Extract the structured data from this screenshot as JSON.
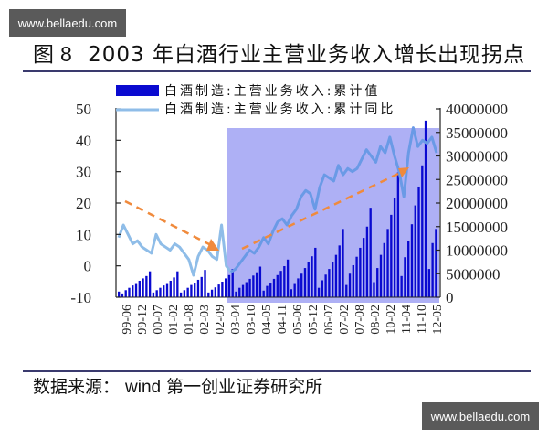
{
  "watermark": {
    "top": "www.bellaedu.com",
    "bottom": "www.bellaedu.com"
  },
  "figure": {
    "label": "图",
    "number": "8",
    "title": "2003 年白酒行业主营业务收入增长出现拐点"
  },
  "source": {
    "prefix": "数据来源：",
    "vendor": "wind",
    "org": "第一创业证券研究所"
  },
  "colors": {
    "bars": "#0a0ad0",
    "line": "#8fbde8",
    "line_highlight": "#6a9ae6",
    "shade": "#aeb0f5",
    "arrow": "#f08a3c",
    "rule": "#3a3a6e"
  },
  "chart_data": {
    "type": "bar+line",
    "title": "2003 年白酒行业主营业务收入增长出现拐点",
    "legend": [
      {
        "name": "白酒制造:主营业务收入:累计值",
        "type": "bar",
        "axis": "right"
      },
      {
        "name": "白酒制造:主营业务收入:累计同比",
        "type": "line",
        "axis": "left"
      }
    ],
    "legend_position": "top",
    "left_axis": {
      "ticks": [
        "50",
        "40",
        "30",
        "20",
        "10",
        "0",
        "-10"
      ],
      "ylim": [
        -10,
        50
      ]
    },
    "right_axis": {
      "ticks": [
        "40000000",
        "35000000",
        "30000000",
        "25000000",
        "20000000",
        "15000000",
        "10000000",
        "5000000",
        "0"
      ],
      "ylim": [
        0,
        40000000
      ]
    },
    "x_tick_labels": [
      "99-06",
      "99-12",
      "00-07",
      "01-02",
      "01-08",
      "02-03",
      "02-09",
      "03-04",
      "03-10",
      "04-05",
      "04-11",
      "05-06",
      "05-12",
      "06-07",
      "07-02",
      "07-08",
      "08-02",
      "10-02",
      "11-04",
      "11-10",
      "12-05"
    ],
    "grid": false,
    "highlight_region": {
      "from": "03-01",
      "to": "12-05",
      "note": "shaded growth period"
    },
    "annotations": [
      {
        "type": "dashed-arrow",
        "direction": "down",
        "from_value": 20,
        "to_value": 6,
        "span": "99-06 to 02-12"
      },
      {
        "type": "dashed-arrow",
        "direction": "up",
        "from_value": 5,
        "to_value": 27,
        "span": "03-03 to 11-10"
      }
    ],
    "series": [
      {
        "name": "白酒制造:主营业务收入:累计同比",
        "type": "line",
        "approx_values": [
          9,
          13,
          10,
          7,
          8,
          6,
          5,
          4,
          10,
          7,
          6,
          5,
          7,
          6,
          4,
          2,
          -3,
          3,
          6,
          5,
          3,
          2,
          13,
          0,
          -2,
          -1,
          1,
          3,
          5,
          4,
          6,
          9,
          7,
          11,
          14,
          15,
          13,
          16,
          18,
          22,
          24,
          23,
          18,
          25,
          29,
          28,
          27,
          32,
          29,
          31,
          30,
          31,
          34,
          37,
          35,
          33,
          38,
          36,
          41,
          35,
          30,
          22,
          36,
          44,
          38,
          40,
          39,
          41,
          36
        ]
      },
      {
        "name": "白酒制造:主营业务收入:累计值",
        "type": "bar",
        "approx_values_millions": [
          1.2,
          0.8,
          1.5,
          2.0,
          2.5,
          3.0,
          3.5,
          4.0,
          4.5,
          5.5,
          1.0,
          1.5,
          2.0,
          2.5,
          3.0,
          3.5,
          4.2,
          5.5,
          1.0,
          1.5,
          2.0,
          2.6,
          3.1,
          3.7,
          4.3,
          5.8,
          1.0,
          1.6,
          2.1,
          2.7,
          3.3,
          4.0,
          4.7,
          6.0,
          1.2,
          2.0,
          2.6,
          3.2,
          3.9,
          4.6,
          5.3,
          6.5,
          1.4,
          2.4,
          3.1,
          3.9,
          4.7,
          5.6,
          6.6,
          8.0,
          1.7,
          3.0,
          4.0,
          5.0,
          6.2,
          7.4,
          8.7,
          10.5,
          2.0,
          3.6,
          4.8,
          6.0,
          7.5,
          9.0,
          11.0,
          14.5,
          2.6,
          5.0,
          6.8,
          8.6,
          10.5,
          12.6,
          15.0,
          19.0,
          3.2,
          6.2,
          9.0,
          11.5,
          14.5,
          17.5,
          21.0,
          26.5,
          4.5,
          8.5,
          12.0,
          15.5,
          19.5,
          23.5,
          28.0,
          37.5,
          6.0,
          11.5,
          14.5
        ]
      }
    ]
  }
}
